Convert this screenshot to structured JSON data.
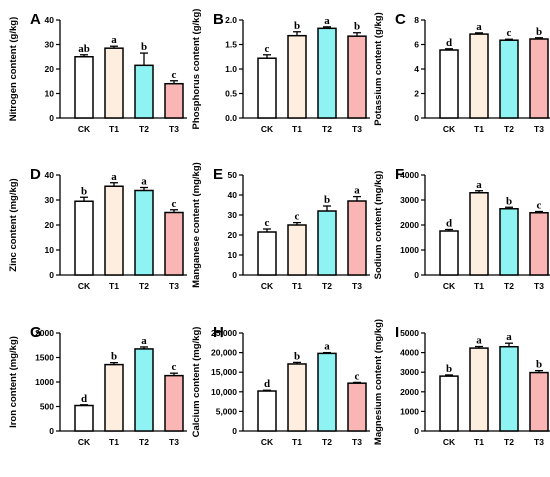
{
  "colors": {
    "CK": "#ffffff",
    "T1": "#fdeedf",
    "T2": "#8ff3f3",
    "T3": "#f9b6b4",
    "stroke": "#000000"
  },
  "chart_data": [
    {
      "type": "bar",
      "panel": "A",
      "ylabel": "Nitrogen content (g/kg)",
      "categories": [
        "CK",
        "T1",
        "T2",
        "T3"
      ],
      "values": [
        25,
        28.5,
        21.5,
        14
      ],
      "errors": [
        0.8,
        0.8,
        5,
        1.2
      ],
      "letters": [
        "ab",
        "a",
        "b",
        "c"
      ],
      "ylim": [
        0,
        40
      ],
      "yticks": [
        0,
        10,
        20,
        30,
        40
      ],
      "ytick_labels": [
        "0",
        "10",
        "20",
        "30",
        "40"
      ]
    },
    {
      "type": "bar",
      "panel": "B",
      "ylabel": "Phosphorus content (g/kg)",
      "categories": [
        "CK",
        "T1",
        "T2",
        "T3"
      ],
      "values": [
        1.22,
        1.68,
        1.83,
        1.67
      ],
      "errors": [
        0.07,
        0.08,
        0.03,
        0.07
      ],
      "letters": [
        "c",
        "b",
        "a",
        "b"
      ],
      "ylim": [
        0,
        2.0
      ],
      "yticks": [
        0,
        0.5,
        1.0,
        1.5,
        2.0
      ],
      "ytick_labels": [
        "0.0",
        "0.5",
        "1.0",
        "1.5",
        "2.0"
      ]
    },
    {
      "type": "bar",
      "panel": "C",
      "ylabel": "Potassium content (g/kg)",
      "categories": [
        "CK",
        "T1",
        "T2",
        "T3"
      ],
      "values": [
        5.55,
        6.85,
        6.35,
        6.45
      ],
      "errors": [
        0.1,
        0.1,
        0.08,
        0.1
      ],
      "letters": [
        "d",
        "a",
        "c",
        "b"
      ],
      "ylim": [
        0,
        8
      ],
      "yticks": [
        0,
        2,
        4,
        6,
        8
      ],
      "ytick_labels": [
        "0",
        "2",
        "4",
        "6",
        "8"
      ]
    },
    {
      "type": "bar",
      "panel": "D",
      "ylabel": "Zinc content (mg/kg)",
      "categories": [
        "CK",
        "T1",
        "T2",
        "T3"
      ],
      "values": [
        29.5,
        35.5,
        33.8,
        25
      ],
      "errors": [
        1.6,
        1.4,
        1.2,
        1.1
      ],
      "letters": [
        "b",
        "a",
        "a",
        "c"
      ],
      "ylim": [
        0,
        40
      ],
      "yticks": [
        0,
        10,
        20,
        30,
        40
      ],
      "ytick_labels": [
        "0",
        "10",
        "20",
        "30",
        "40"
      ]
    },
    {
      "type": "bar",
      "panel": "E",
      "ylabel": "Manganese content (mg/kg)",
      "categories": [
        "CK",
        "T1",
        "T2",
        "T3"
      ],
      "values": [
        21.5,
        25,
        32,
        37
      ],
      "errors": [
        1.5,
        1.2,
        2.5,
        2.2
      ],
      "letters": [
        "c",
        "c",
        "b",
        "a"
      ],
      "ylim": [
        0,
        50
      ],
      "yticks": [
        0,
        10,
        20,
        30,
        40,
        50
      ],
      "ytick_labels": [
        "0",
        "10",
        "20",
        "30",
        "40",
        "50"
      ]
    },
    {
      "type": "bar",
      "panel": "F",
      "ylabel": "Sodium content (mg/kg)",
      "categories": [
        "CK",
        "T1",
        "T2",
        "T3"
      ],
      "values": [
        1760,
        3290,
        2650,
        2490
      ],
      "errors": [
        60,
        80,
        60,
        50
      ],
      "letters": [
        "d",
        "a",
        "b",
        "c"
      ],
      "ylim": [
        0,
        4000
      ],
      "yticks": [
        0,
        1000,
        2000,
        3000,
        4000
      ],
      "ytick_labels": [
        "0",
        "1000",
        "2000",
        "3000",
        "4000"
      ]
    },
    {
      "type": "bar",
      "panel": "G",
      "ylabel": "Iron content (mg/kg)",
      "categories": [
        "CK",
        "T1",
        "T2",
        "T3"
      ],
      "values": [
        520,
        1355,
        1675,
        1130
      ],
      "errors": [
        15,
        40,
        40,
        50
      ],
      "letters": [
        "d",
        "b",
        "a",
        "c"
      ],
      "ylim": [
        0,
        2000
      ],
      "yticks": [
        0,
        500,
        1000,
        1500,
        2000
      ],
      "ytick_labels": [
        "0",
        "500",
        "1000",
        "1500",
        "2000"
      ]
    },
    {
      "type": "bar",
      "panel": "H",
      "ylabel": "Calcium content (mg/kg)",
      "categories": [
        "CK",
        "T1",
        "T2",
        "T3"
      ],
      "values": [
        10200,
        17100,
        19800,
        12200
      ],
      "errors": [
        200,
        400,
        200,
        200
      ],
      "letters": [
        "d",
        "b",
        "a",
        "c"
      ],
      "ylim": [
        0,
        25000
      ],
      "yticks": [
        0,
        5000,
        10000,
        15000,
        20000,
        25000
      ],
      "ytick_labels": [
        "0",
        "5,000",
        "10,000",
        "15,000",
        "20,000",
        "25,000"
      ]
    },
    {
      "type": "bar",
      "panel": "I",
      "ylabel": "Magnesium content (mg/kg)",
      "categories": [
        "CK",
        "T1",
        "T2",
        "T3"
      ],
      "values": [
        2800,
        4230,
        4300,
        2980
      ],
      "errors": [
        60,
        80,
        180,
        100
      ],
      "letters": [
        "b",
        "a",
        "a",
        "b"
      ],
      "ylim": [
        0,
        5000
      ],
      "yticks": [
        0,
        1000,
        2000,
        3000,
        4000,
        5000
      ],
      "ytick_labels": [
        "0",
        "1000",
        "2000",
        "3000",
        "4000",
        "5000"
      ]
    }
  ]
}
